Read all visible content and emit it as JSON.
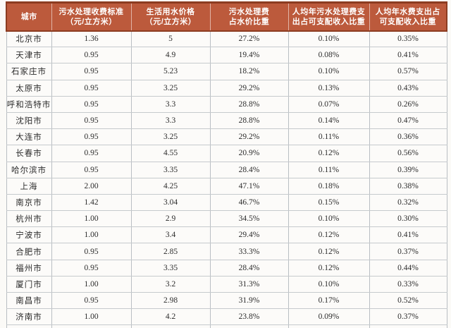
{
  "colors": {
    "header_bg": "#bc5a3c",
    "header_border": "#8c3c21",
    "grid_v": "#b9bec3",
    "grid_h": "#c6cacd",
    "text": "#2c2c2c"
  },
  "table": {
    "headers": [
      [
        "城市"
      ],
      [
        "污水处理收费标准",
        "（元/立方米）"
      ],
      [
        "生活用水价格",
        "（元/立方米）"
      ],
      [
        "污水处理费",
        "占水价比重"
      ],
      [
        "人均年污水处理费支",
        "出占可支配收入比重"
      ],
      [
        "人均年水费支出占",
        "可支配收入比重"
      ]
    ],
    "rows": [
      [
        "北京市",
        "1.36",
        "5",
        "27.2%",
        "0.10%",
        "0.35%"
      ],
      [
        "天津市",
        "0.95",
        "4.9",
        "19.4%",
        "0.08%",
        "0.41%"
      ],
      [
        "石家庄市",
        "0.95",
        "5.23",
        "18.2%",
        "0.10%",
        "0.57%"
      ],
      [
        "太原市",
        "0.95",
        "3.25",
        "29.2%",
        "0.13%",
        "0.43%"
      ],
      [
        "呼和浩特市",
        "0.95",
        "3.3",
        "28.8%",
        "0.07%",
        "0.26%"
      ],
      [
        "沈阳市",
        "0.95",
        "3.3",
        "28.8%",
        "0.14%",
        "0.47%"
      ],
      [
        "大连市",
        "0.95",
        "3.25",
        "29.2%",
        "0.11%",
        "0.36%"
      ],
      [
        "长春市",
        "0.95",
        "4.55",
        "20.9%",
        "0.12%",
        "0.56%"
      ],
      [
        "哈尔滨市",
        "0.95",
        "3.35",
        "28.4%",
        "0.11%",
        "0.39%"
      ],
      [
        "上海",
        "2.00",
        "4.25",
        "47.1%",
        "0.18%",
        "0.38%"
      ],
      [
        "南京市",
        "1.42",
        "3.04",
        "46.7%",
        "0.15%",
        "0.32%"
      ],
      [
        "杭州市",
        "1.00",
        "2.9",
        "34.5%",
        "0.10%",
        "0.30%"
      ],
      [
        "宁波市",
        "1.00",
        "3.4",
        "29.4%",
        "0.12%",
        "0.41%"
      ],
      [
        "合肥市",
        "0.95",
        "2.85",
        "33.3%",
        "0.12%",
        "0.37%"
      ],
      [
        "福州市",
        "0.95",
        "3.35",
        "28.4%",
        "0.12%",
        "0.44%"
      ],
      [
        "厦门市",
        "1.00",
        "3.2",
        "31.3%",
        "0.10%",
        "0.33%"
      ],
      [
        "南昌市",
        "0.95",
        "2.98",
        "31.9%",
        "0.17%",
        "0.52%"
      ],
      [
        "济南市",
        "1.00",
        "4.2",
        "23.8%",
        "0.09%",
        "0.37%"
      ]
    ]
  },
  "chart_data": {
    "type": "table",
    "title": "城市污水处理收费与水费支出比较表",
    "columns": [
      "城市",
      "污水处理收费标准（元/立方米）",
      "生活用水价格（元/立方米）",
      "污水处理费占水价比重",
      "人均年污水处理费支出占可支配收入比重",
      "人均年水费支出占可支配收入比重"
    ],
    "rows": [
      [
        "北京市",
        1.36,
        5,
        "27.2%",
        "0.10%",
        "0.35%"
      ],
      [
        "天津市",
        0.95,
        4.9,
        "19.4%",
        "0.08%",
        "0.41%"
      ],
      [
        "石家庄市",
        0.95,
        5.23,
        "18.2%",
        "0.10%",
        "0.57%"
      ],
      [
        "太原市",
        0.95,
        3.25,
        "29.2%",
        "0.13%",
        "0.43%"
      ],
      [
        "呼和浩特市",
        0.95,
        3.3,
        "28.8%",
        "0.07%",
        "0.26%"
      ],
      [
        "沈阳市",
        0.95,
        3.3,
        "28.8%",
        "0.14%",
        "0.47%"
      ],
      [
        "大连市",
        0.95,
        3.25,
        "29.2%",
        "0.11%",
        "0.36%"
      ],
      [
        "长春市",
        0.95,
        4.55,
        "20.9%",
        "0.12%",
        "0.56%"
      ],
      [
        "哈尔滨市",
        0.95,
        3.35,
        "28.4%",
        "0.11%",
        "0.39%"
      ],
      [
        "上海",
        2.0,
        4.25,
        "47.1%",
        "0.18%",
        "0.38%"
      ],
      [
        "南京市",
        1.42,
        3.04,
        "46.7%",
        "0.15%",
        "0.32%"
      ],
      [
        "杭州市",
        1.0,
        2.9,
        "34.5%",
        "0.10%",
        "0.30%"
      ],
      [
        "宁波市",
        1.0,
        3.4,
        "29.4%",
        "0.12%",
        "0.41%"
      ],
      [
        "合肥市",
        0.95,
        2.85,
        "33.3%",
        "0.12%",
        "0.37%"
      ],
      [
        "福州市",
        0.95,
        3.35,
        "28.4%",
        "0.12%",
        "0.44%"
      ],
      [
        "厦门市",
        1.0,
        3.2,
        "31.3%",
        "0.10%",
        "0.33%"
      ],
      [
        "南昌市",
        0.95,
        2.98,
        "31.9%",
        "0.17%",
        "0.52%"
      ],
      [
        "济南市",
        1.0,
        4.2,
        "23.8%",
        "0.09%",
        "0.37%"
      ]
    ]
  }
}
